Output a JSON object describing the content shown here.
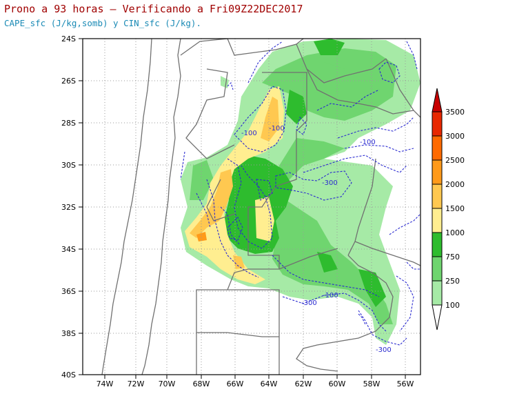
{
  "title": "Prono a 93 horas – Verificando a Fri09Z22DEC2017",
  "subtitle": "CAPE_sfc (J/kg,somb) y CIN_sfc (J/kg).",
  "map": {
    "lat_ticks": [
      "24S",
      "26S",
      "28S",
      "30S",
      "32S",
      "34S",
      "36S",
      "38S",
      "40S"
    ],
    "lon_ticks": [
      "74W",
      "72W",
      "70W",
      "68W",
      "66W",
      "64W",
      "62W",
      "60W",
      "58W",
      "56W"
    ],
    "lat_range": [
      -40,
      -24
    ],
    "lon_range": [
      -75.2,
      -55.3
    ],
    "grid": true,
    "cin_contour_labels": [
      "-100",
      "-100",
      "-300",
      "-100",
      "-300",
      "-100",
      "-300"
    ]
  },
  "colorbar": {
    "levels": [
      "3500",
      "3000",
      "2500",
      "2000",
      "1500",
      "1000",
      "750",
      "250",
      "100"
    ],
    "colors": [
      "#a40000",
      "#e82800",
      "#ff6a00",
      "#ff9a1a",
      "#ffc850",
      "#ffee90",
      "#2ebc2e",
      "#6fd56f",
      "#a6eaa6",
      "#d6f7d6"
    ],
    "ends": [
      "#c80000",
      "#ffffff"
    ]
  }
}
